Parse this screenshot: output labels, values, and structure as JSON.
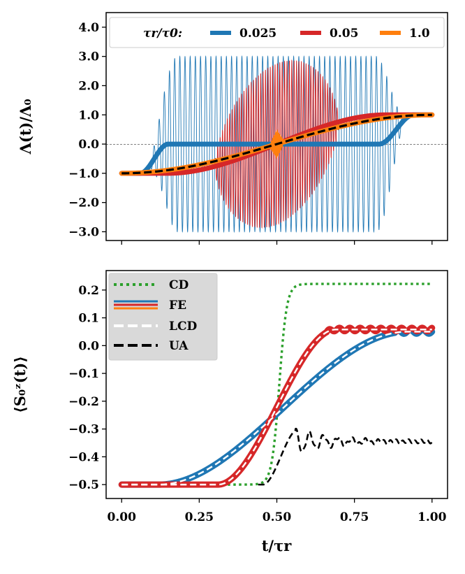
{
  "chart_data": [
    {
      "type": "line",
      "panel": "top",
      "ylabel": "Λ(t)/Λ₀",
      "xlim": [
        -0.05,
        1.05
      ],
      "ylim": [
        -3.3,
        4.5
      ],
      "yticks": [
        "4.0",
        "3.0",
        "2.0",
        "1.0",
        "0.0",
        "−1.0",
        "−2.0",
        "−3.0"
      ],
      "ytick_values": [
        4,
        3,
        2,
        1,
        0,
        -1,
        -2,
        -3
      ],
      "xtick_values": [
        0,
        0.25,
        0.5,
        0.75,
        1.0
      ],
      "legend": {
        "title": "τr/τ0:",
        "placement": "top",
        "entries": [
          {
            "label": "0.025",
            "color": "#1f77b4"
          },
          {
            "label": "0.05",
            "color": "#d62728"
          },
          {
            "label": "1.0",
            "color": "#ff7f0e"
          }
        ]
      },
      "series": [
        {
          "name": "0.025",
          "color": "#1f77b4",
          "description": "steps -1 to 0 near t=0.10, flat 0, steps 0 to 1 near t=0.90; thin oscillations amplitude ~3.0 on t in [0.15,0.85]"
        },
        {
          "name": "0.05",
          "color": "#d62728",
          "description": "smooth ramp -1 to 1 with central oscillation peaking ~2.75 at t=0.5, zero outside [0.30,0.70]"
        },
        {
          "name": "1.0",
          "color": "#ff7f0e",
          "description": "smooth ramp -1 to 1, short oscillation near t=0.5"
        },
        {
          "name": "UA",
          "color": "#000000",
          "style": "dashed",
          "description": "sin^2 ramp -1 to 1"
        }
      ]
    },
    {
      "type": "line",
      "panel": "bottom",
      "xlabel": "t/τr",
      "ylabel": "⟨S₀ᶻ(t)⟩",
      "xlim": [
        -0.05,
        1.05
      ],
      "ylim": [
        -0.55,
        0.27
      ],
      "xticks": [
        "0.00",
        "0.25",
        "0.50",
        "0.75",
        "1.00"
      ],
      "xtick_values": [
        0,
        0.25,
        0.5,
        0.75,
        1.0
      ],
      "yticks": [
        "0.2",
        "0.1",
        "0.0",
        "−0.1",
        "−0.2",
        "−0.3",
        "−0.4",
        "−0.5"
      ],
      "ytick_values": [
        0.2,
        0.1,
        0.0,
        -0.1,
        -0.2,
        -0.3,
        -0.4,
        -0.5
      ],
      "legend": {
        "placement": "top-left",
        "entries": [
          {
            "label": "CD",
            "style": "dotted",
            "color": "#2ca02c"
          },
          {
            "label": "FE",
            "style": "solid",
            "colors": [
              "#1f77b4",
              "#d62728",
              "#ff7f0e"
            ]
          },
          {
            "label": "LCD",
            "style": "dashed",
            "color": "#ffffff"
          },
          {
            "label": "UA",
            "style": "dashed",
            "color": "#000000"
          }
        ]
      },
      "series": [
        {
          "name": "CD",
          "color": "#2ca02c",
          "style": "dotted",
          "points": [
            [
              0,
              -0.5
            ],
            [
              0.4,
              -0.5
            ],
            [
              0.46,
              -0.49
            ],
            [
              0.49,
              -0.4
            ],
            [
              0.51,
              -0.1
            ],
            [
              0.53,
              0.15
            ],
            [
              0.55,
              0.21
            ],
            [
              0.58,
              0.222
            ],
            [
              1.0,
              0.222
            ]
          ]
        },
        {
          "name": "FE blue",
          "color": "#1f77b4",
          "points": [
            [
              0,
              -0.5
            ],
            [
              0.13,
              -0.495
            ],
            [
              0.25,
              -0.44
            ],
            [
              0.4,
              -0.33
            ],
            [
              0.5,
              -0.24
            ],
            [
              0.7,
              -0.07
            ],
            [
              0.85,
              0.03
            ],
            [
              0.9,
              0.05
            ],
            [
              1.0,
              0.045
            ]
          ]
        },
        {
          "name": "FE red",
          "color": "#d62728",
          "points": [
            [
              0,
              -0.5
            ],
            [
              0.33,
              -0.495
            ],
            [
              0.4,
              -0.44
            ],
            [
              0.5,
              -0.22
            ],
            [
              0.6,
              -0.05
            ],
            [
              0.67,
              0.055
            ],
            [
              0.7,
              0.06
            ],
            [
              1.0,
              0.055
            ]
          ]
        },
        {
          "name": "UA",
          "color": "#000000",
          "style": "dashed",
          "points": [
            [
              0,
              -0.5
            ],
            [
              0.45,
              -0.495
            ],
            [
              0.5,
              -0.45
            ],
            [
              0.55,
              -0.32
            ],
            [
              0.58,
              -0.3
            ],
            [
              0.6,
              -0.34
            ],
            [
              0.63,
              -0.33
            ],
            [
              1.0,
              -0.345
            ]
          ]
        }
      ]
    }
  ]
}
